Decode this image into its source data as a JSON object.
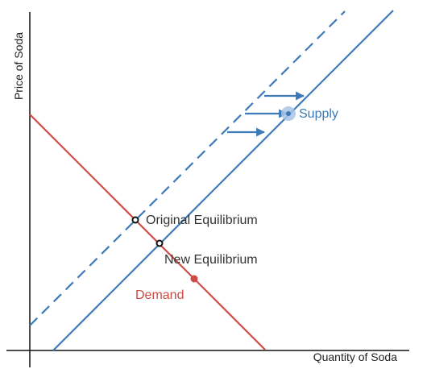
{
  "colors": {
    "axis": "#111111",
    "supply": "#3d7ab8",
    "demand": "#cc4b44",
    "equilibrium": "#111111",
    "supply_halo": "#a9c4e6"
  },
  "axes": {
    "x_label": "Quantity of Soda",
    "y_label": "Price of Soda"
  },
  "labels": {
    "supply": "Supply",
    "demand": "Demand",
    "original_equilibrium": "Original Equilibrium",
    "new_equilibrium": "New Equilibrium"
  },
  "lines": {
    "demand": "solid",
    "original_supply": "dashed",
    "new_supply": "solid"
  },
  "arrows": {
    "count": 3,
    "direction": "right"
  }
}
